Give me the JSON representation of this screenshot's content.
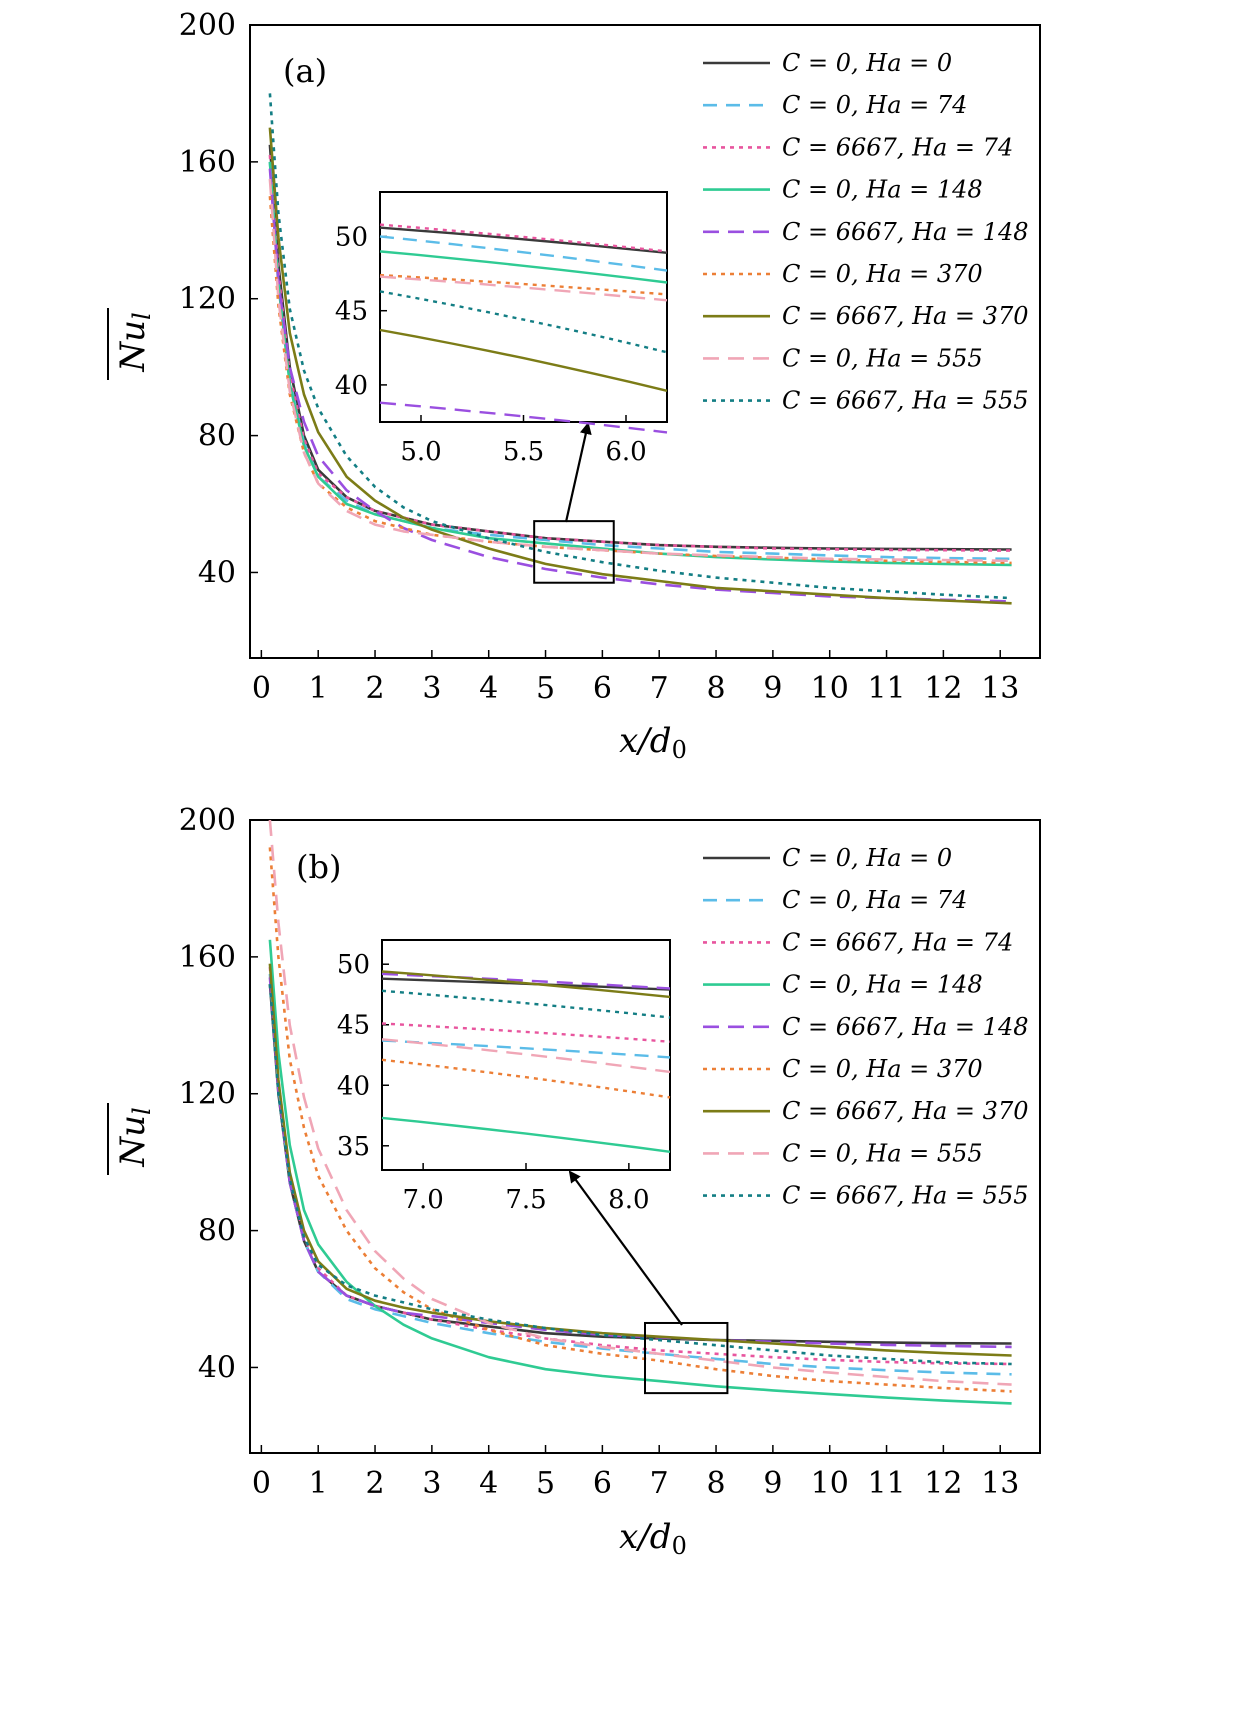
{
  "series_styles": [
    {
      "color": "#3a3a3a",
      "dash": "none"
    },
    {
      "color": "#5bbce8",
      "dash": "14,9"
    },
    {
      "color": "#e8559e",
      "dash": "4,5"
    },
    {
      "color": "#2fcb93",
      "dash": "none"
    },
    {
      "color": "#9a4fe0",
      "dash": "16,9"
    },
    {
      "color": "#ec7f36",
      "dash": "4,5"
    },
    {
      "color": "#7c7c17",
      "dash": "none"
    },
    {
      "color": "#f0a6b6",
      "dash": "16,9"
    },
    {
      "color": "#137e84",
      "dash": "4,5"
    }
  ],
  "chart_data": [
    {
      "type": "line",
      "panel_label": "(a)",
      "xlabel": "x/d0",
      "ylabel": "Nu_l",
      "xlim": [
        -0.2,
        13.7
      ],
      "ylim": [
        15,
        200
      ],
      "xticks": [
        0,
        1,
        2,
        3,
        4,
        5,
        6,
        7,
        8,
        9,
        10,
        11,
        12,
        13
      ],
      "yticks": [
        40,
        80,
        120,
        160,
        200
      ],
      "legend_position": "top-right",
      "series": [
        {
          "name": "C = 0, Ha = 0",
          "x": [
            0.15,
            0.3,
            0.5,
            0.75,
            1,
            1.5,
            2,
            2.5,
            3,
            4,
            5,
            6,
            7,
            8,
            9,
            10,
            11,
            12,
            13.2
          ],
          "y": [
            165,
            130,
            100,
            80,
            70,
            62,
            58,
            56,
            54,
            52,
            50,
            49,
            48,
            47.5,
            47.2,
            47,
            46.9,
            46.8,
            46.7
          ]
        },
        {
          "name": "C = 0, Ha = 74",
          "x": [
            0.15,
            0.3,
            0.5,
            0.75,
            1,
            1.5,
            2,
            2.5,
            3,
            4,
            5,
            6,
            7,
            8,
            9,
            10,
            11,
            12,
            13.2
          ],
          "y": [
            160,
            125,
            96,
            78,
            68,
            61,
            57,
            55,
            53,
            51,
            49.5,
            48,
            47,
            46,
            45.5,
            45,
            44.5,
            44.2,
            44
          ]
        },
        {
          "name": "C = 6667, Ha = 74",
          "x": [
            0.15,
            0.3,
            0.5,
            0.75,
            1,
            1.5,
            2,
            2.5,
            3,
            4,
            5,
            6,
            7,
            8,
            9,
            10,
            11,
            12,
            13.2
          ],
          "y": [
            162,
            128,
            98,
            79,
            69,
            62,
            58,
            56,
            54,
            52,
            50,
            49,
            48,
            47.5,
            47,
            46.8,
            46.6,
            46.5,
            46.4
          ]
        },
        {
          "name": "C = 0, Ha = 148",
          "x": [
            0.15,
            0.3,
            0.5,
            0.75,
            1,
            1.5,
            2,
            2.5,
            3,
            4,
            5,
            6,
            7,
            8,
            9,
            10,
            11,
            12,
            13.2
          ],
          "y": [
            160,
            124,
            95,
            77,
            68,
            60,
            57,
            55,
            53,
            50,
            48.5,
            47,
            45.5,
            44.5,
            43.8,
            43.2,
            42.8,
            42.5,
            42.2
          ]
        },
        {
          "name": "C = 6667, Ha = 148",
          "x": [
            0.15,
            0.3,
            0.5,
            0.75,
            1,
            1.5,
            2,
            2.5,
            3,
            4,
            5,
            6,
            7,
            8,
            9,
            10,
            11,
            12,
            13.2
          ],
          "y": [
            158,
            125,
            100,
            84,
            74,
            64,
            58,
            53,
            49.5,
            44.5,
            41,
            38.5,
            36.5,
            35,
            34,
            33,
            32.5,
            32,
            31.5
          ]
        },
        {
          "name": "C = 0, Ha = 370",
          "x": [
            0.15,
            0.3,
            0.5,
            0.75,
            1,
            1.5,
            2,
            2.5,
            3,
            4,
            5,
            6,
            7,
            8,
            9,
            10,
            11,
            12,
            13.2
          ],
          "y": [
            150,
            118,
            92,
            75,
            66,
            59,
            55,
            53,
            51,
            49,
            47.5,
            46.5,
            45.5,
            44.8,
            44.3,
            43.8,
            43.4,
            43.1,
            42.8
          ]
        },
        {
          "name": "C = 6667, Ha = 370",
          "x": [
            0.15,
            0.3,
            0.5,
            0.75,
            1,
            1.5,
            2,
            2.5,
            3,
            4,
            5,
            6,
            7,
            8,
            9,
            10,
            11,
            12,
            13.2
          ],
          "y": [
            170,
            138,
            110,
            92,
            81,
            68,
            61,
            56,
            52.5,
            47,
            42.5,
            39.5,
            37.5,
            35.5,
            34.5,
            33.5,
            32.5,
            31.8,
            31
          ]
        },
        {
          "name": "C = 0, Ha = 555",
          "x": [
            0.15,
            0.3,
            0.5,
            0.75,
            1,
            1.5,
            2,
            2.5,
            3,
            4,
            5,
            6,
            7,
            8,
            9,
            10,
            11,
            12,
            13.2
          ],
          "y": [
            155,
            120,
            93,
            75,
            66,
            58,
            54,
            52,
            51,
            49,
            47.5,
            46.5,
            45.5,
            45,
            44.5,
            44,
            43.8,
            43.6,
            43.4
          ]
        },
        {
          "name": "C = 6667, Ha = 555",
          "x": [
            0.15,
            0.3,
            0.5,
            0.75,
            1,
            1.5,
            2,
            2.5,
            3,
            4,
            5,
            6,
            7,
            8,
            9,
            10,
            11,
            12,
            13.2
          ],
          "y": [
            180,
            145,
            117,
            99,
            88,
            74,
            65,
            59,
            55,
            50,
            46,
            43,
            40.5,
            38.5,
            37,
            35.5,
            34.5,
            33.5,
            32.5
          ]
        }
      ],
      "inset": {
        "xlim": [
          4.8,
          6.2
        ],
        "ylim": [
          37.5,
          53
        ],
        "xticks": [
          5.0,
          5.5,
          6.0
        ],
        "yticks": [
          40,
          45,
          50
        ],
        "series_y_start": [
          50.6,
          50.0,
          50.8,
          49.0,
          38.8,
          47.4,
          43.7,
          47.3,
          46.3
        ],
        "series_y_end": [
          48.9,
          47.7,
          49.0,
          46.9,
          36.8,
          46.1,
          39.6,
          45.7,
          42.2
        ]
      }
    },
    {
      "type": "line",
      "panel_label": "(b)",
      "xlabel": "x/d0",
      "ylabel": "Nu_l",
      "xlim": [
        -0.2,
        13.7
      ],
      "ylim": [
        15,
        200
      ],
      "xticks": [
        0,
        1,
        2,
        3,
        4,
        5,
        6,
        7,
        8,
        9,
        10,
        11,
        12,
        13
      ],
      "yticks": [
        40,
        80,
        120,
        160,
        200
      ],
      "legend_position": "top-right",
      "series": [
        {
          "name": "C = 0, Ha = 0",
          "x": [
            0.15,
            0.3,
            0.5,
            0.75,
            1,
            1.5,
            2,
            2.5,
            3,
            4,
            5,
            6,
            7,
            8,
            9,
            10,
            11,
            12,
            13.2
          ],
          "y": [
            152,
            120,
            94,
            77,
            68,
            61,
            58,
            56,
            54,
            52,
            50,
            49,
            48.5,
            48,
            47.8,
            47.5,
            47.3,
            47.1,
            47
          ]
        },
        {
          "name": "C = 0, Ha = 74",
          "x": [
            0.15,
            0.3,
            0.5,
            0.75,
            1,
            1.5,
            2,
            2.5,
            3,
            4,
            5,
            6,
            7,
            8,
            9,
            10,
            11,
            12,
            13.2
          ],
          "y": [
            155,
            122,
            95,
            77,
            68,
            60,
            57,
            55,
            53,
            50,
            47.5,
            45.5,
            44,
            42.5,
            41,
            40,
            39.2,
            38.5,
            38
          ]
        },
        {
          "name": "C = 6667, Ha = 74",
          "x": [
            0.15,
            0.3,
            0.5,
            0.75,
            1,
            1.5,
            2,
            2.5,
            3,
            4,
            5,
            6,
            7,
            8,
            9,
            10,
            11,
            12,
            13.2
          ],
          "y": [
            157,
            124,
            96,
            78,
            69,
            61,
            58,
            56,
            54,
            51,
            48.5,
            46.5,
            45,
            44,
            43,
            42.2,
            41.6,
            41.2,
            41
          ]
        },
        {
          "name": "C = 0, Ha = 148",
          "x": [
            0.15,
            0.3,
            0.5,
            0.75,
            1,
            1.5,
            2,
            2.5,
            3,
            4,
            5,
            6,
            7,
            8,
            9,
            10,
            11,
            12,
            13.2
          ],
          "y": [
            165,
            132,
            105,
            86,
            76,
            65,
            58,
            52.5,
            48.5,
            43,
            39.5,
            37.5,
            36,
            34.5,
            33.3,
            32.2,
            31.2,
            30.3,
            29.5
          ]
        },
        {
          "name": "C = 6667, Ha = 148",
          "x": [
            0.15,
            0.3,
            0.5,
            0.75,
            1,
            1.5,
            2,
            2.5,
            3,
            4,
            5,
            6,
            7,
            8,
            9,
            10,
            11,
            12,
            13.2
          ],
          "y": [
            154,
            121,
            94,
            77,
            68,
            61,
            58,
            56,
            55,
            53,
            51,
            49.5,
            48.8,
            48,
            47.5,
            47,
            46.6,
            46.3,
            46
          ]
        },
        {
          "name": "C = 0, Ha = 370",
          "x": [
            0.15,
            0.3,
            0.5,
            0.75,
            1,
            1.5,
            2,
            2.5,
            3,
            4,
            5,
            6,
            7,
            8,
            9,
            10,
            11,
            12,
            13.2
          ],
          "y": [
            192,
            160,
            130,
            110,
            96,
            80,
            69,
            62,
            57,
            51,
            46.5,
            44,
            42,
            39.5,
            37.5,
            36,
            35,
            34,
            33
          ]
        },
        {
          "name": "C = 6667, Ha = 370",
          "x": [
            0.15,
            0.3,
            0.5,
            0.75,
            1,
            1.5,
            2,
            2.5,
            3,
            4,
            5,
            6,
            7,
            8,
            9,
            10,
            11,
            12,
            13.2
          ],
          "y": [
            158,
            124,
            97,
            80,
            71,
            63,
            59.5,
            57.5,
            56,
            53.5,
            51.5,
            50,
            49,
            48,
            47,
            46,
            45,
            44.2,
            43.5
          ]
        },
        {
          "name": "C = 0, Ha = 555",
          "x": [
            0.15,
            0.3,
            0.5,
            0.75,
            1,
            1.5,
            2,
            2.5,
            3,
            4,
            5,
            6,
            7,
            8,
            9,
            10,
            11,
            12,
            13.2
          ],
          "y": [
            200,
            170,
            140,
            119,
            104,
            86,
            74,
            66,
            60,
            53,
            48.5,
            46,
            44,
            42,
            40,
            38.5,
            37.2,
            36,
            35
          ]
        },
        {
          "name": "C = 6667, Ha = 555",
          "x": [
            0.15,
            0.3,
            0.5,
            0.75,
            1,
            1.5,
            2,
            2.5,
            3,
            4,
            5,
            6,
            7,
            8,
            9,
            10,
            11,
            12,
            13.2
          ],
          "y": [
            152,
            120,
            95,
            78,
            70,
            64,
            61,
            59,
            57,
            54,
            51.5,
            49.5,
            48,
            46.5,
            45,
            43.5,
            42.5,
            41.5,
            41
          ]
        }
      ],
      "inset": {
        "xlim": [
          6.8,
          8.2
        ],
        "ylim": [
          33,
          52
        ],
        "xticks": [
          7.0,
          7.5,
          8.0
        ],
        "yticks": [
          35,
          40,
          45,
          50
        ],
        "series_y_start": [
          48.8,
          43.7,
          45.1,
          37.3,
          49.2,
          42.1,
          49.4,
          43.8,
          47.8
        ],
        "series_y_end": [
          47.9,
          42.3,
          43.6,
          34.5,
          48.0,
          39.0,
          47.3,
          41.1,
          45.6
        ]
      }
    }
  ]
}
